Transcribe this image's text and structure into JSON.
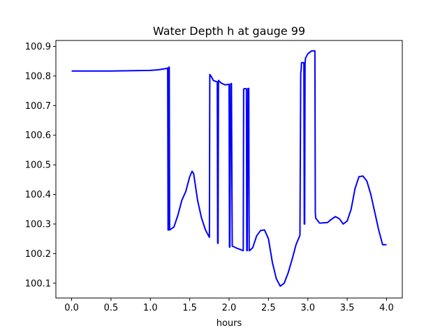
{
  "chart_data": {
    "type": "line",
    "title": "Water Depth h at gauge 99",
    "xlabel": "hours",
    "ylabel": "",
    "xlim": [
      -0.2,
      4.2
    ],
    "ylim": [
      100.05,
      100.92
    ],
    "xticks": [
      0.0,
      0.5,
      1.0,
      1.5,
      2.0,
      2.5,
      3.0,
      3.5,
      4.0
    ],
    "xtick_labels": [
      "0.0",
      "0.5",
      "1.0",
      "1.5",
      "2.0",
      "2.5",
      "3.0",
      "3.5",
      "4.0"
    ],
    "yticks": [
      100.1,
      100.2,
      100.3,
      100.4,
      100.5,
      100.6,
      100.7,
      100.8,
      100.9
    ],
    "ytick_labels": [
      "100.1",
      "100.2",
      "100.3",
      "100.4",
      "100.5",
      "100.6",
      "100.7",
      "100.8",
      "100.9"
    ],
    "grid": false,
    "series": [
      {
        "color": "#0000ff",
        "x": [
          0.0,
          0.5,
          1.0,
          1.1,
          1.2,
          1.22,
          1.225,
          1.232,
          1.237,
          1.24,
          1.245,
          1.3,
          1.35,
          1.4,
          1.45,
          1.5,
          1.53,
          1.55,
          1.6,
          1.65,
          1.7,
          1.75,
          1.755,
          1.77,
          1.8,
          1.85,
          1.855,
          1.86,
          1.865,
          1.9,
          1.95,
          2.0,
          2.005,
          2.01,
          2.02,
          2.03,
          2.04,
          2.045,
          2.1,
          2.18,
          2.185,
          2.19,
          2.22,
          2.225,
          2.23,
          2.24,
          2.25,
          2.255,
          2.26,
          2.3,
          2.35,
          2.4,
          2.45,
          2.5,
          2.55,
          2.6,
          2.65,
          2.7,
          2.75,
          2.8,
          2.85,
          2.9,
          2.91,
          2.915,
          2.92,
          2.95,
          2.955,
          2.96,
          2.965,
          2.97,
          3.0,
          3.05,
          3.07,
          3.09,
          3.095,
          3.1,
          3.15,
          3.2,
          3.25,
          3.3,
          3.35,
          3.4,
          3.45,
          3.5,
          3.55,
          3.6,
          3.65,
          3.7,
          3.75,
          3.8,
          3.85,
          3.9,
          3.95,
          4.0
        ],
        "y": [
          100.817,
          100.817,
          100.819,
          100.821,
          100.825,
          100.827,
          100.28,
          100.28,
          100.83,
          100.83,
          100.28,
          100.29,
          100.33,
          100.38,
          100.41,
          100.46,
          100.478,
          100.47,
          100.38,
          100.32,
          100.28,
          100.255,
          100.805,
          100.8,
          100.785,
          100.78,
          100.235,
          100.235,
          100.785,
          100.776,
          100.77,
          100.772,
          100.222,
          100.222,
          100.773,
          100.775,
          100.225,
          100.225,
          100.218,
          100.21,
          100.755,
          100.757,
          100.757,
          100.21,
          100.21,
          100.758,
          100.758,
          100.21,
          100.21,
          100.22,
          100.26,
          100.278,
          100.28,
          100.25,
          100.17,
          100.115,
          100.09,
          100.1,
          100.135,
          100.18,
          100.23,
          100.262,
          100.81,
          100.82,
          100.845,
          100.845,
          100.3,
          100.3,
          100.84,
          100.86,
          100.875,
          100.885,
          100.885,
          100.885,
          100.34,
          100.32,
          100.303,
          100.304,
          100.305,
          100.316,
          100.325,
          100.318,
          100.3,
          100.31,
          100.35,
          100.42,
          100.46,
          100.462,
          100.445,
          100.4,
          100.34,
          100.28,
          100.23,
          100.23
        ]
      }
    ]
  }
}
